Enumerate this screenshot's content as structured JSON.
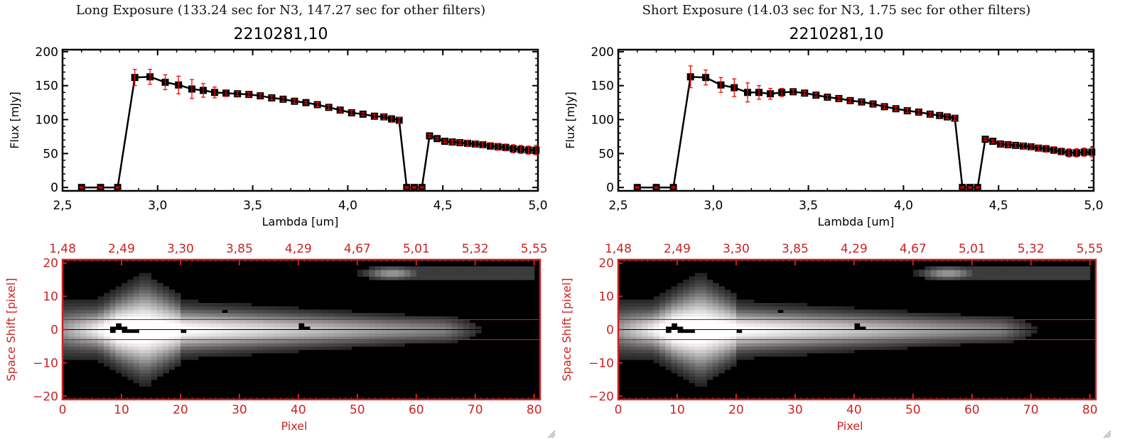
{
  "panels": [
    {
      "exposure_title": "Long Exposure (133.24 sec for N3, 147.27 sec for other filters)",
      "object_id": "2210281,10"
    },
    {
      "exposure_title": "Short Exposure (14.03 sec for N3, 1.75 sec for other filters)",
      "object_id": "2210281,10"
    }
  ],
  "colors": {
    "axis_black": "#000000",
    "errorbar_red": "#ff0000",
    "image_axis_red": "#cc2222",
    "aperture_line_red": "#dd1111"
  },
  "chart_data": [
    {
      "type": "line",
      "title": "2210281,10",
      "panel": "long-exposure-spectrum",
      "xlabel": "Lambda [um]",
      "ylabel": "Flux [mJy]",
      "xlim": [
        2.5,
        5.0
      ],
      "ylim": [
        -5,
        203
      ],
      "xticks": [
        "2,5",
        "3,0",
        "3,5",
        "4,0",
        "4,5",
        "5,0"
      ],
      "xtick_values": [
        2.5,
        3.0,
        3.5,
        4.0,
        4.5,
        5.0
      ],
      "yticks": [
        "0",
        "50",
        "100",
        "150",
        "200"
      ],
      "ytick_values": [
        0,
        50,
        100,
        150,
        200
      ],
      "grid": false,
      "series": [
        {
          "name": "flux",
          "x": [
            2.6,
            2.7,
            2.79,
            2.88,
            2.96,
            3.04,
            3.11,
            3.18,
            3.24,
            3.3,
            3.36,
            3.42,
            3.48,
            3.54,
            3.6,
            3.66,
            3.72,
            3.78,
            3.84,
            3.9,
            3.96,
            4.02,
            4.08,
            4.14,
            4.19,
            4.23,
            4.27,
            4.31,
            4.35,
            4.39,
            4.43,
            4.47,
            4.51,
            4.55,
            4.59,
            4.63,
            4.67,
            4.71,
            4.75,
            4.79,
            4.83,
            4.87,
            4.91,
            4.95,
            4.99
          ],
          "y": [
            0,
            0,
            0,
            162,
            163,
            155,
            151,
            145,
            143,
            140,
            139,
            138,
            137,
            135,
            132,
            130,
            127,
            125,
            122,
            118,
            114,
            110,
            108,
            105,
            104,
            101,
            99,
            0,
            0,
            0,
            76,
            72,
            68,
            67,
            66,
            65,
            64,
            63,
            61,
            60,
            59,
            57,
            56,
            55,
            55
          ],
          "err": [
            1,
            1,
            1,
            12,
            11,
            11,
            13,
            14,
            10,
            8,
            5,
            3,
            3,
            3,
            3,
            3,
            3,
            2,
            3,
            3,
            3,
            3,
            2,
            3,
            4,
            5,
            4,
            1,
            1,
            1,
            2,
            2,
            2,
            3,
            3,
            4,
            4,
            4,
            5,
            5,
            5,
            6,
            6,
            6,
            7
          ]
        }
      ]
    },
    {
      "type": "heatmap",
      "panel": "long-exposure-image",
      "xlabel": "Pixel",
      "ylabel": "Space Shift [pixel]",
      "xlim": [
        0,
        81
      ],
      "ylim": [
        -21,
        21
      ],
      "xticks": [
        "0",
        "10",
        "20",
        "30",
        "40",
        "50",
        "60",
        "70",
        "80"
      ],
      "xtick_values": [
        0,
        10,
        20,
        30,
        40,
        50,
        60,
        70,
        80
      ],
      "top_xticks": [
        "1,48",
        "2,49",
        "3,30",
        "3,85",
        "4,29",
        "4,67",
        "5,01",
        "5,32",
        "5,55"
      ],
      "yticks": [
        "−20",
        "−10",
        "0",
        "10",
        "20"
      ],
      "ytick_values": [
        -20,
        -10,
        0,
        10,
        20
      ],
      "aperture_lines": [
        3,
        -3
      ],
      "center_line": 0,
      "colormap": "gray"
    },
    {
      "type": "line",
      "title": "2210281,10",
      "panel": "short-exposure-spectrum",
      "xlabel": "Lambda [um]",
      "ylabel": "Flux [mJy]",
      "xlim": [
        2.5,
        5.0
      ],
      "ylim": [
        -5,
        203
      ],
      "xticks": [
        "2,5",
        "3,0",
        "3,5",
        "4,0",
        "4,5",
        "5,0"
      ],
      "xtick_values": [
        2.5,
        3.0,
        3.5,
        4.0,
        4.5,
        5.0
      ],
      "yticks": [
        "0",
        "50",
        "100",
        "150",
        "200"
      ],
      "ytick_values": [
        0,
        50,
        100,
        150,
        200
      ],
      "grid": false,
      "series": [
        {
          "name": "flux",
          "x": [
            2.6,
            2.7,
            2.79,
            2.88,
            2.96,
            3.04,
            3.11,
            3.18,
            3.24,
            3.3,
            3.36,
            3.42,
            3.48,
            3.54,
            3.6,
            3.66,
            3.72,
            3.78,
            3.84,
            3.9,
            3.96,
            4.02,
            4.08,
            4.14,
            4.19,
            4.23,
            4.27,
            4.31,
            4.35,
            4.39,
            4.43,
            4.47,
            4.51,
            4.55,
            4.59,
            4.63,
            4.67,
            4.71,
            4.75,
            4.79,
            4.83,
            4.87,
            4.91,
            4.95,
            4.99
          ],
          "y": [
            0,
            0,
            0,
            163,
            162,
            151,
            147,
            140,
            140,
            138,
            140,
            141,
            139,
            136,
            133,
            131,
            128,
            126,
            123,
            119,
            116,
            113,
            111,
            108,
            106,
            104,
            102,
            0,
            0,
            0,
            71,
            68,
            64,
            63,
            62,
            61,
            60,
            58,
            57,
            55,
            53,
            51,
            51,
            52,
            52
          ],
          "err": [
            1,
            1,
            1,
            16,
            11,
            11,
            13,
            14,
            10,
            8,
            6,
            3,
            3,
            3,
            3,
            3,
            3,
            3,
            3,
            3,
            3,
            3,
            3,
            3,
            3,
            3,
            4,
            1,
            1,
            1,
            2,
            2,
            3,
            3,
            3,
            4,
            4,
            4,
            5,
            5,
            5,
            6,
            6,
            6,
            7
          ]
        }
      ]
    },
    {
      "type": "heatmap",
      "panel": "short-exposure-image",
      "xlabel": "Pixel",
      "ylabel": "Space Shift [pixel]",
      "xlim": [
        0,
        81
      ],
      "ylim": [
        -21,
        21
      ],
      "xticks": [
        "0",
        "10",
        "20",
        "30",
        "40",
        "50",
        "60",
        "70",
        "80"
      ],
      "xtick_values": [
        0,
        10,
        20,
        30,
        40,
        50,
        60,
        70,
        80
      ],
      "top_xticks": [
        "1,48",
        "2,49",
        "3,30",
        "3,85",
        "4,29",
        "4,67",
        "5,01",
        "5,32",
        "5,55"
      ],
      "yticks": [
        "−20",
        "−10",
        "0",
        "10",
        "20"
      ],
      "ytick_values": [
        -20,
        -10,
        0,
        10,
        20
      ],
      "aperture_lines": [
        3,
        -3
      ],
      "center_line": 0,
      "colormap": "gray"
    }
  ]
}
